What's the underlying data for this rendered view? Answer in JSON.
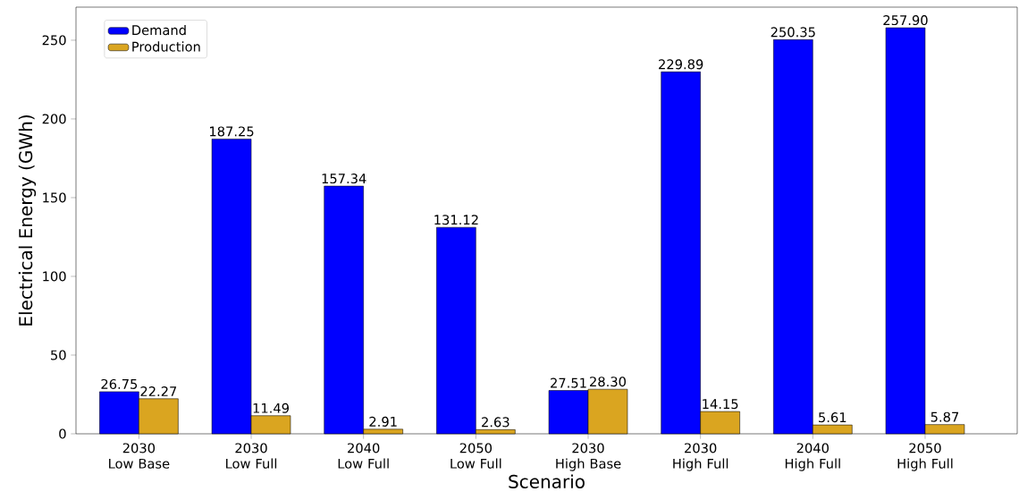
{
  "chart_data": {
    "type": "bar",
    "xlabel": "Scenario",
    "ylabel": "Electrical Energy (GWh)",
    "categories": [
      "2030 Low Base",
      "2030 Low Full",
      "2040 Low Full",
      "2050 Low Full",
      "2030 High Base",
      "2030 High Full",
      "2040 High Full",
      "2050 High Full"
    ],
    "series": [
      {
        "name": "Demand",
        "color": "#0000ff",
        "values": [
          26.75,
          187.25,
          157.34,
          131.12,
          27.51,
          229.89,
          250.35,
          257.9
        ],
        "value_labels": [
          "26.75",
          "187.25",
          "157.34",
          "131.12",
          "27.51",
          "229.89",
          "250.35",
          "257.90"
        ]
      },
      {
        "name": "Production",
        "color": "#daa520",
        "values": [
          22.27,
          11.49,
          2.91,
          2.63,
          28.3,
          14.15,
          5.61,
          5.87
        ],
        "value_labels": [
          "22.27",
          "11.49",
          "2.91",
          "2.63",
          "28.30",
          "14.15",
          "5.61",
          "5.87"
        ]
      }
    ],
    "ylim": [
      0,
      271
    ],
    "yticks": [
      0,
      50,
      100,
      150,
      200,
      250
    ],
    "legend": "top left"
  }
}
